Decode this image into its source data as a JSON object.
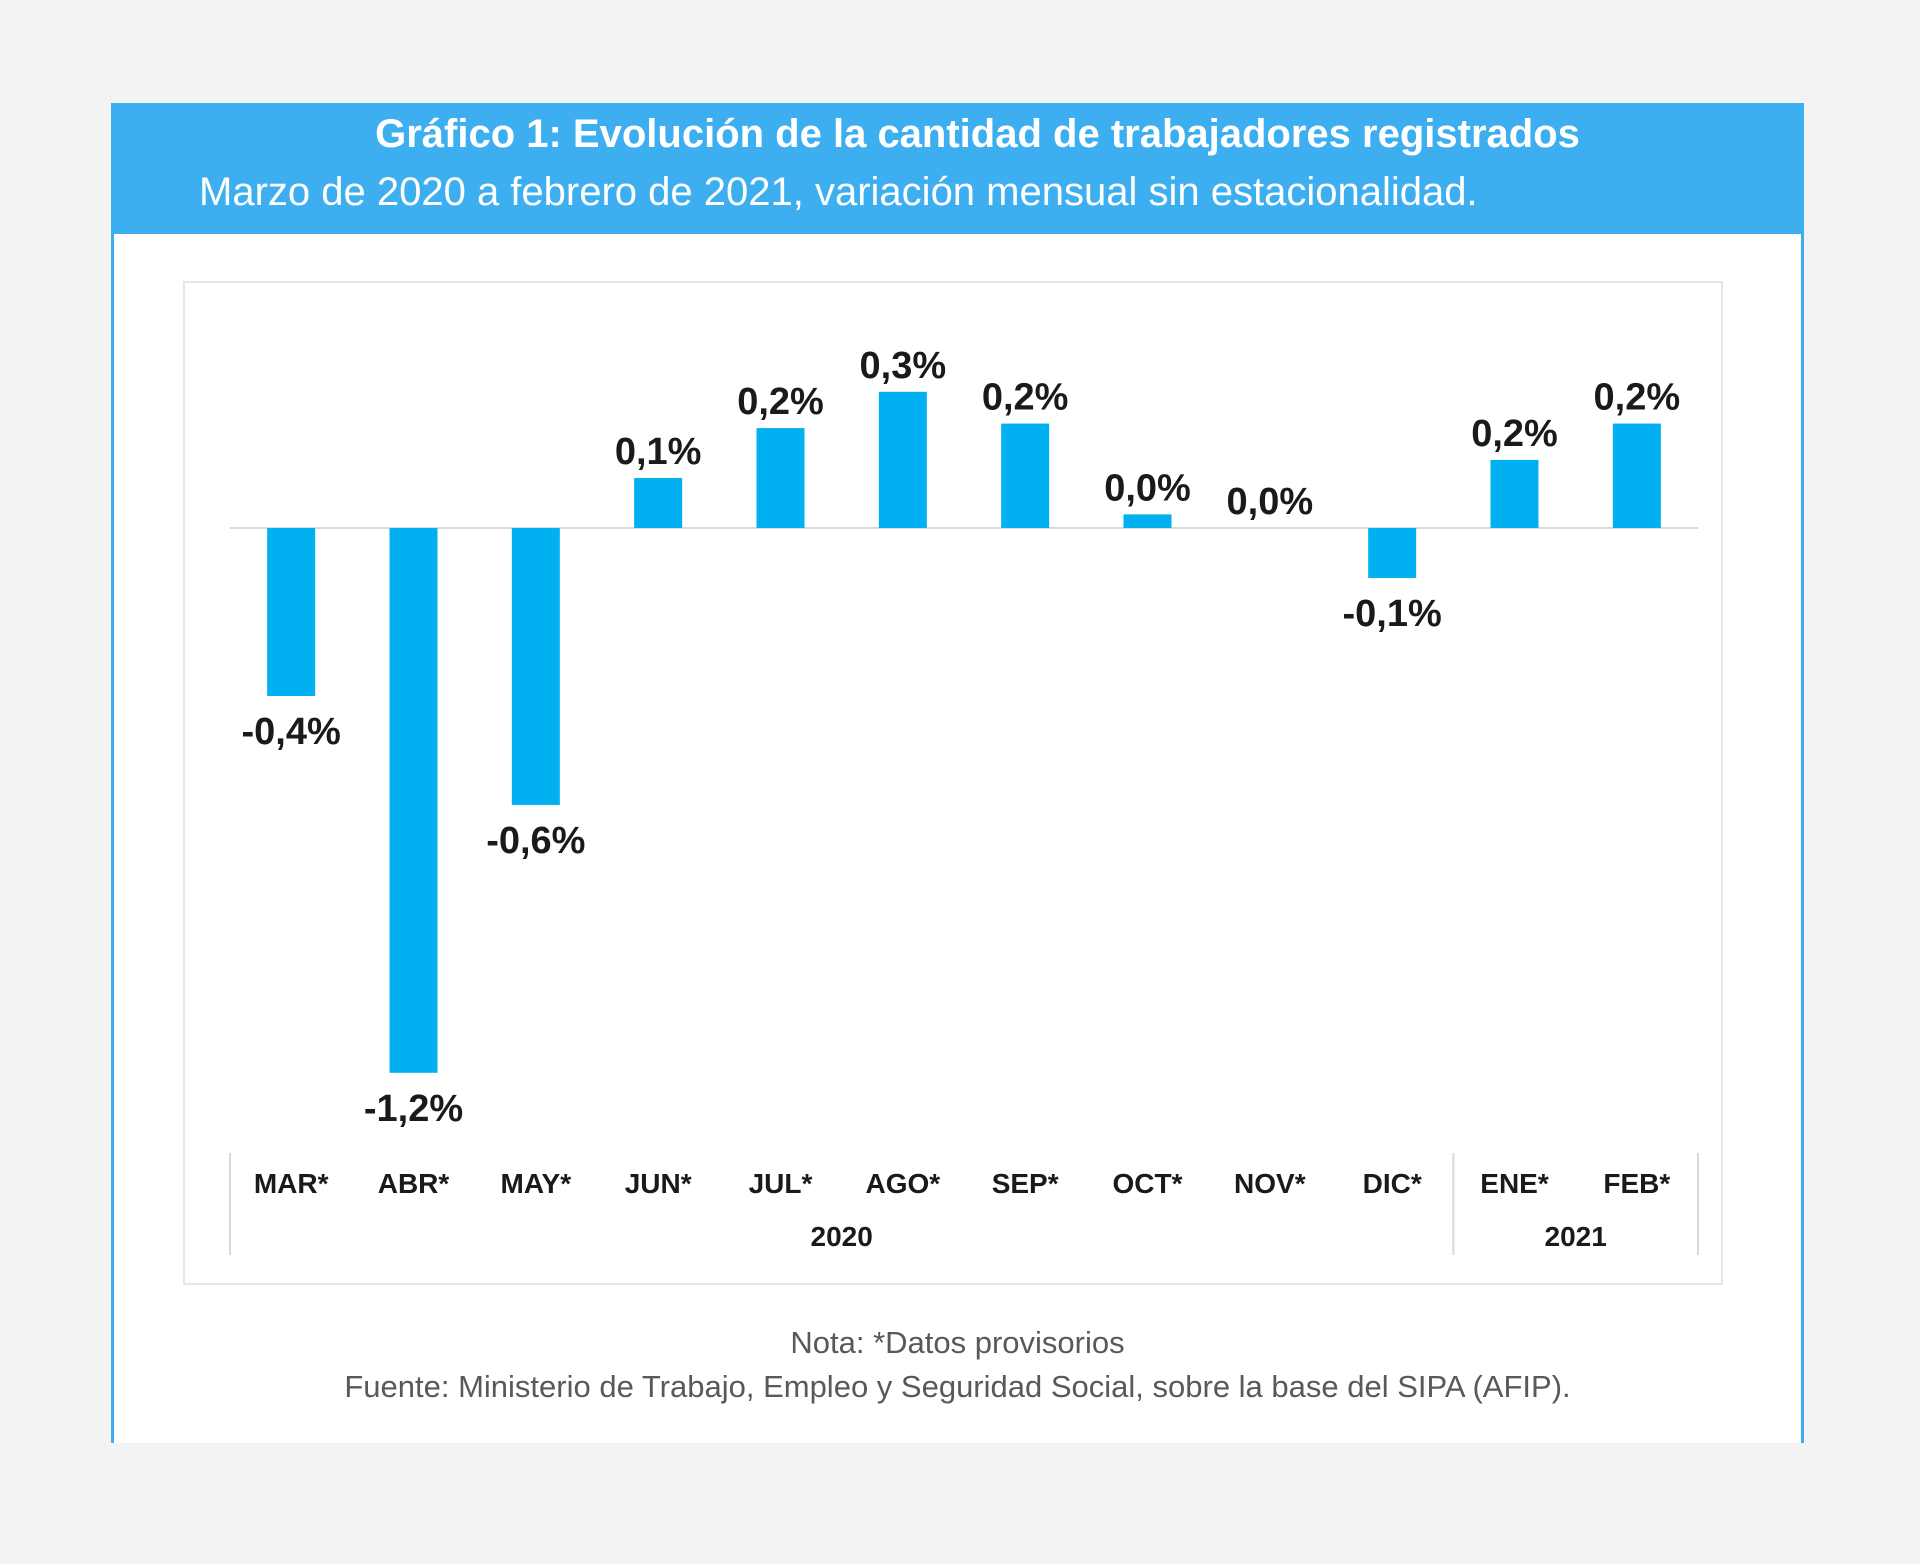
{
  "header": {
    "title": "Gráfico 1: Evolución de la cantidad de trabajadores registrados",
    "subtitle": "Marzo de 2020 a febrero de 2021, variación mensual sin estacionalidad."
  },
  "footer": {
    "note": "Nota: *Datos provisorios",
    "source": "Fuente: Ministerio de Trabajo, Empleo y Seguridad Social, sobre la base del SIPA (AFIP)."
  },
  "colors": {
    "header_bg": "#3daff0",
    "bar": "#00b0f0"
  },
  "chart_data": {
    "type": "bar",
    "categories": [
      "MAR*",
      "ABR*",
      "MAY*",
      "JUN*",
      "JUL*",
      "AGO*",
      "SEP*",
      "OCT*",
      "NOV*",
      "DIC*",
      "ENE*",
      "FEB*"
    ],
    "values": [
      -0.37,
      -1.2,
      -0.61,
      0.11,
      0.22,
      0.3,
      0.23,
      0.03,
      0.0,
      -0.11,
      0.15,
      0.23
    ],
    "data_labels": [
      "-0,4%",
      "-1,2%",
      "-0,6%",
      "0,1%",
      "0,2%",
      "0,3%",
      "0,2%",
      "0,0%",
      "0,0%",
      "-0,1%",
      "0,2%",
      "0,2%"
    ],
    "groups": [
      {
        "label": "2020",
        "categories": [
          "MAR*",
          "ABR*",
          "MAY*",
          "JUN*",
          "JUL*",
          "AGO*",
          "SEP*",
          "OCT*",
          "NOV*",
          "DIC*"
        ]
      },
      {
        "label": "2021",
        "categories": [
          "ENE*",
          "FEB*"
        ]
      }
    ],
    "ylim": [
      -1.2,
      0.3
    ],
    "grid": false,
    "legend": "none"
  }
}
